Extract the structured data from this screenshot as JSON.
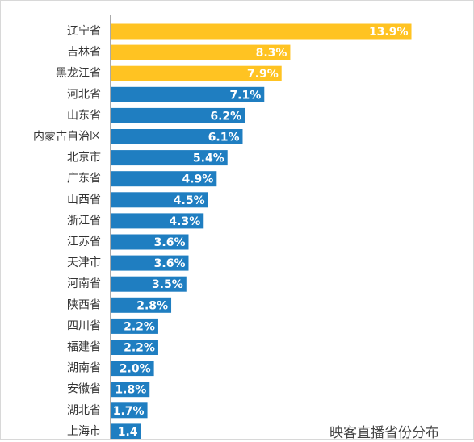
{
  "chart_data": {
    "type": "bar",
    "orientation": "horizontal",
    "caption": "映客直播省份分布",
    "categories": [
      "辽宁省",
      "吉林省",
      "黑龙江省",
      "河北省",
      "山东省",
      "内蒙古自治区",
      "北京市",
      "广东省",
      "山西省",
      "浙江省",
      "江苏省",
      "天津市",
      "河南省",
      "陕西省",
      "四川省",
      "福建省",
      "湖南省",
      "安徽省",
      "湖北省",
      "上海市"
    ],
    "values": [
      13.9,
      8.3,
      7.9,
      7.1,
      6.2,
      6.1,
      5.4,
      4.9,
      4.5,
      4.3,
      3.6,
      3.6,
      3.5,
      2.8,
      2.2,
      2.2,
      2.0,
      1.8,
      1.7,
      1.4
    ],
    "value_labels": [
      "13.9%",
      "8.3%",
      "7.9%",
      "7.1%",
      "6.2%",
      "6.1%",
      "5.4%",
      "4.9%",
      "4.5%",
      "4.3%",
      "3.6%",
      "3.6%",
      "3.5%",
      "2.8%",
      "2.2%",
      "2.2%",
      "2.0%",
      "1.8%",
      "1.7%",
      "1.4"
    ],
    "highlight_count": 3,
    "colors": {
      "highlight": "#FFC322",
      "normal": "#1F7EC1",
      "axis": "#555555"
    },
    "legend": "none",
    "grid": false
  }
}
